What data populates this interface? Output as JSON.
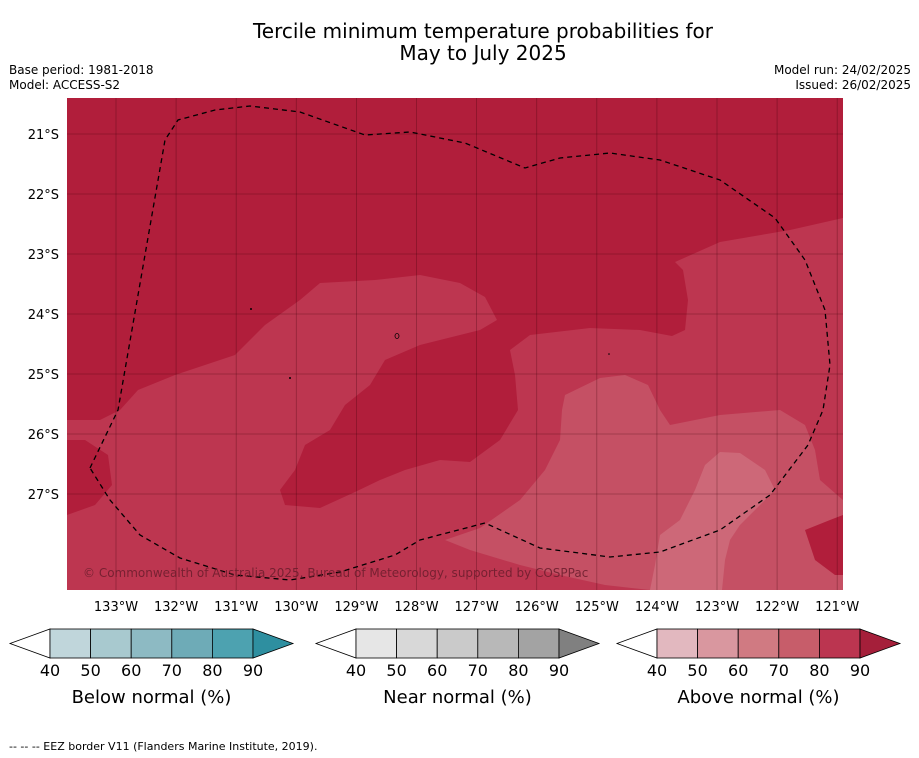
{
  "header": {
    "title_line1": "Tercile minimum temperature probabilities for",
    "title_line2": "May to July 2025",
    "base_period": "Base period: 1981-2018",
    "model": "Model: ACCESS-S2",
    "model_run": "Model run: 24/02/2025",
    "issued": "Issued: 26/02/2025"
  },
  "credit": "© Commonwealth of Australia 2025, Bureau of Meteorology, supported by COSPPac",
  "footer": "-- -- -- EEZ border V11 (Flanders Marine Institute, 2019).",
  "chart_data": {
    "type": "heatmap",
    "x_ticks": [
      "133°W",
      "132°W",
      "131°W",
      "130°W",
      "129°W",
      "128°W",
      "127°W",
      "126°W",
      "125°W",
      "124°W",
      "123°W",
      "122°W",
      "121°W"
    ],
    "y_ticks": [
      "21°S",
      "22°S",
      "23°S",
      "24°S",
      "25°S",
      "26°S",
      "27°S"
    ],
    "xlim": [
      -133.8,
      -120.9
    ],
    "ylim": [
      -28.6,
      -20.4
    ],
    "grid": true,
    "field": "Above normal probability (%) — dominant category across whole map",
    "map_colors": {
      "band_90": "#b11e3b",
      "band_80": "#bd3650",
      "band_70": "#c55064",
      "band_60": "#cd6878"
    },
    "legends": [
      {
        "label": "Below normal (%)",
        "ticks": [
          "40",
          "50",
          "60",
          "70",
          "80",
          "90"
        ],
        "colors": [
          "#c0d6db",
          "#a8c9cf",
          "#8dbac3",
          "#6eabb7",
          "#4da2b0",
          "#2e8fa0"
        ]
      },
      {
        "label": "Near normal (%)",
        "ticks": [
          "40",
          "50",
          "60",
          "70",
          "80",
          "90"
        ],
        "colors": [
          "#e6e6e6",
          "#d8d8d8",
          "#cacaca",
          "#b8b8b8",
          "#a3a3a3",
          "#808080"
        ]
      },
      {
        "label": "Above normal (%)",
        "ticks": [
          "40",
          "50",
          "60",
          "70",
          "80",
          "90"
        ],
        "colors": [
          "#e2b8bf",
          "#d9979f",
          "#d07a82",
          "#c75d6a",
          "#bb3550",
          "#a51f3a"
        ]
      }
    ],
    "eez_border": "dashed black line"
  }
}
